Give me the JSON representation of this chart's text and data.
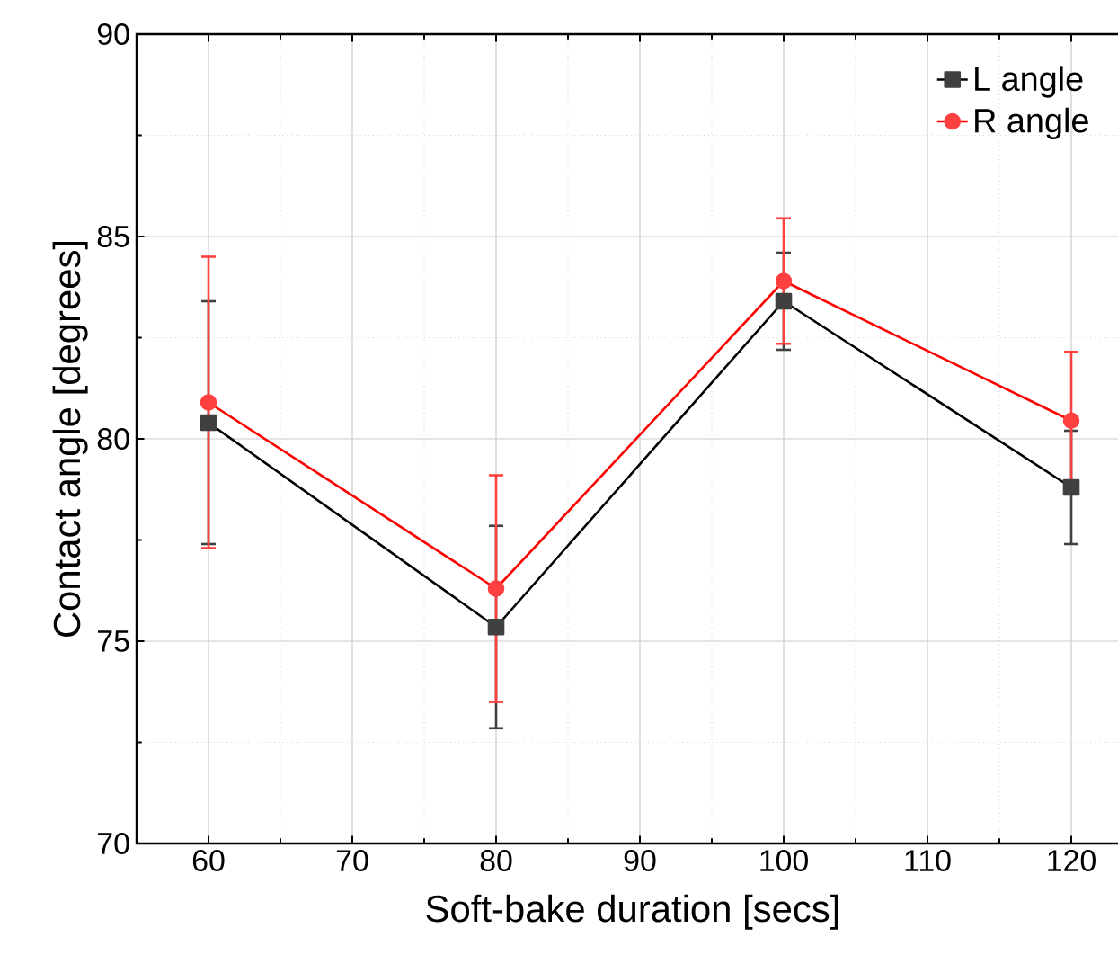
{
  "chart_data": {
    "type": "line",
    "xlabel": "Soft-bake duration [secs]",
    "ylabel": "Contact angle [degrees]",
    "x": [
      60,
      80,
      100,
      120
    ],
    "series": [
      {
        "name": "L angle",
        "color": "#000000",
        "marker": "square",
        "values": [
          80.4,
          75.35,
          83.4,
          78.8
        ],
        "errors": [
          3.0,
          2.5,
          1.2,
          1.4
        ]
      },
      {
        "name": "R angle",
        "color": "#ff0000",
        "marker": "circle",
        "values": [
          80.9,
          76.3,
          83.9,
          80.45
        ],
        "errors": [
          3.6,
          2.8,
          1.55,
          1.7
        ]
      }
    ],
    "xlim": [
      55,
      124
    ],
    "ylim": [
      70,
      90
    ],
    "xticks": [
      60,
      70,
      80,
      90,
      100,
      110,
      120
    ],
    "yticks": [
      70,
      75,
      80,
      85,
      90
    ],
    "grid": true,
    "legend": "top right",
    "line_style": "solid"
  }
}
